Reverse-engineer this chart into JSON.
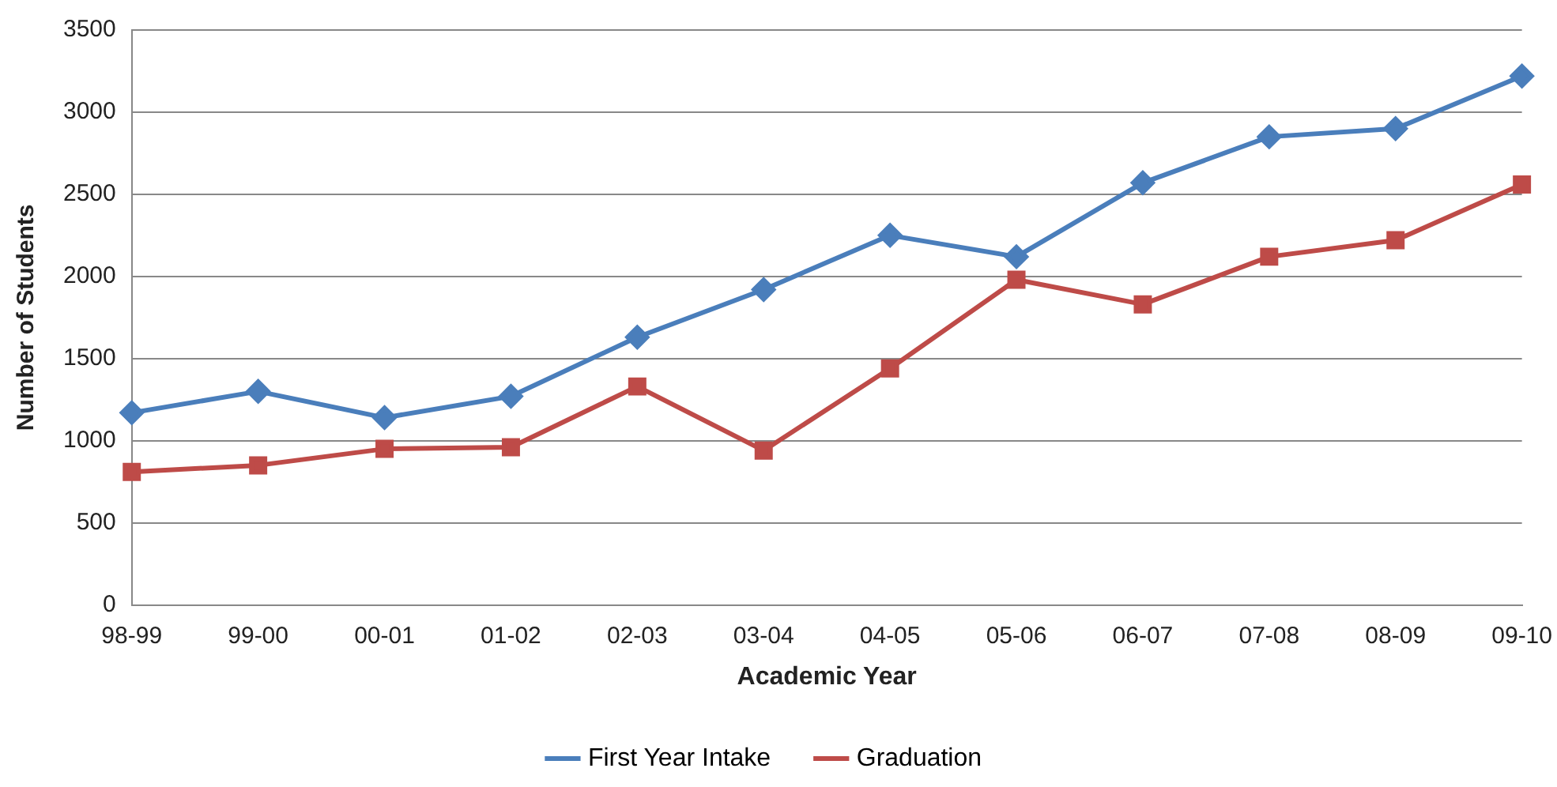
{
  "chart_data": {
    "type": "line",
    "xlabel": "Academic Year",
    "ylabel": "Number of Students",
    "categories": [
      "98-99",
      "99-00",
      "00-01",
      "01-02",
      "02-03",
      "03-04",
      "04-05",
      "05-06",
      "06-07",
      "07-08",
      "08-09",
      "09-10"
    ],
    "series": [
      {
        "name": "First Year Intake",
        "color": "#4a7ebb",
        "marker": "diamond",
        "values": [
          1170,
          1300,
          1140,
          1270,
          1630,
          1920,
          2250,
          2120,
          2570,
          2850,
          2900,
          3220
        ]
      },
      {
        "name": "Graduation",
        "color": "#be4b48",
        "marker": "square",
        "values": [
          810,
          850,
          950,
          960,
          1330,
          940,
          1440,
          1980,
          1830,
          2120,
          2220,
          2560
        ]
      }
    ],
    "ylim": [
      0,
      3500
    ],
    "yticks": [
      0,
      500,
      1000,
      1500,
      2000,
      2500,
      3000,
      3500
    ],
    "grid": "y",
    "legend": "bottom",
    "line_style": "solid"
  }
}
